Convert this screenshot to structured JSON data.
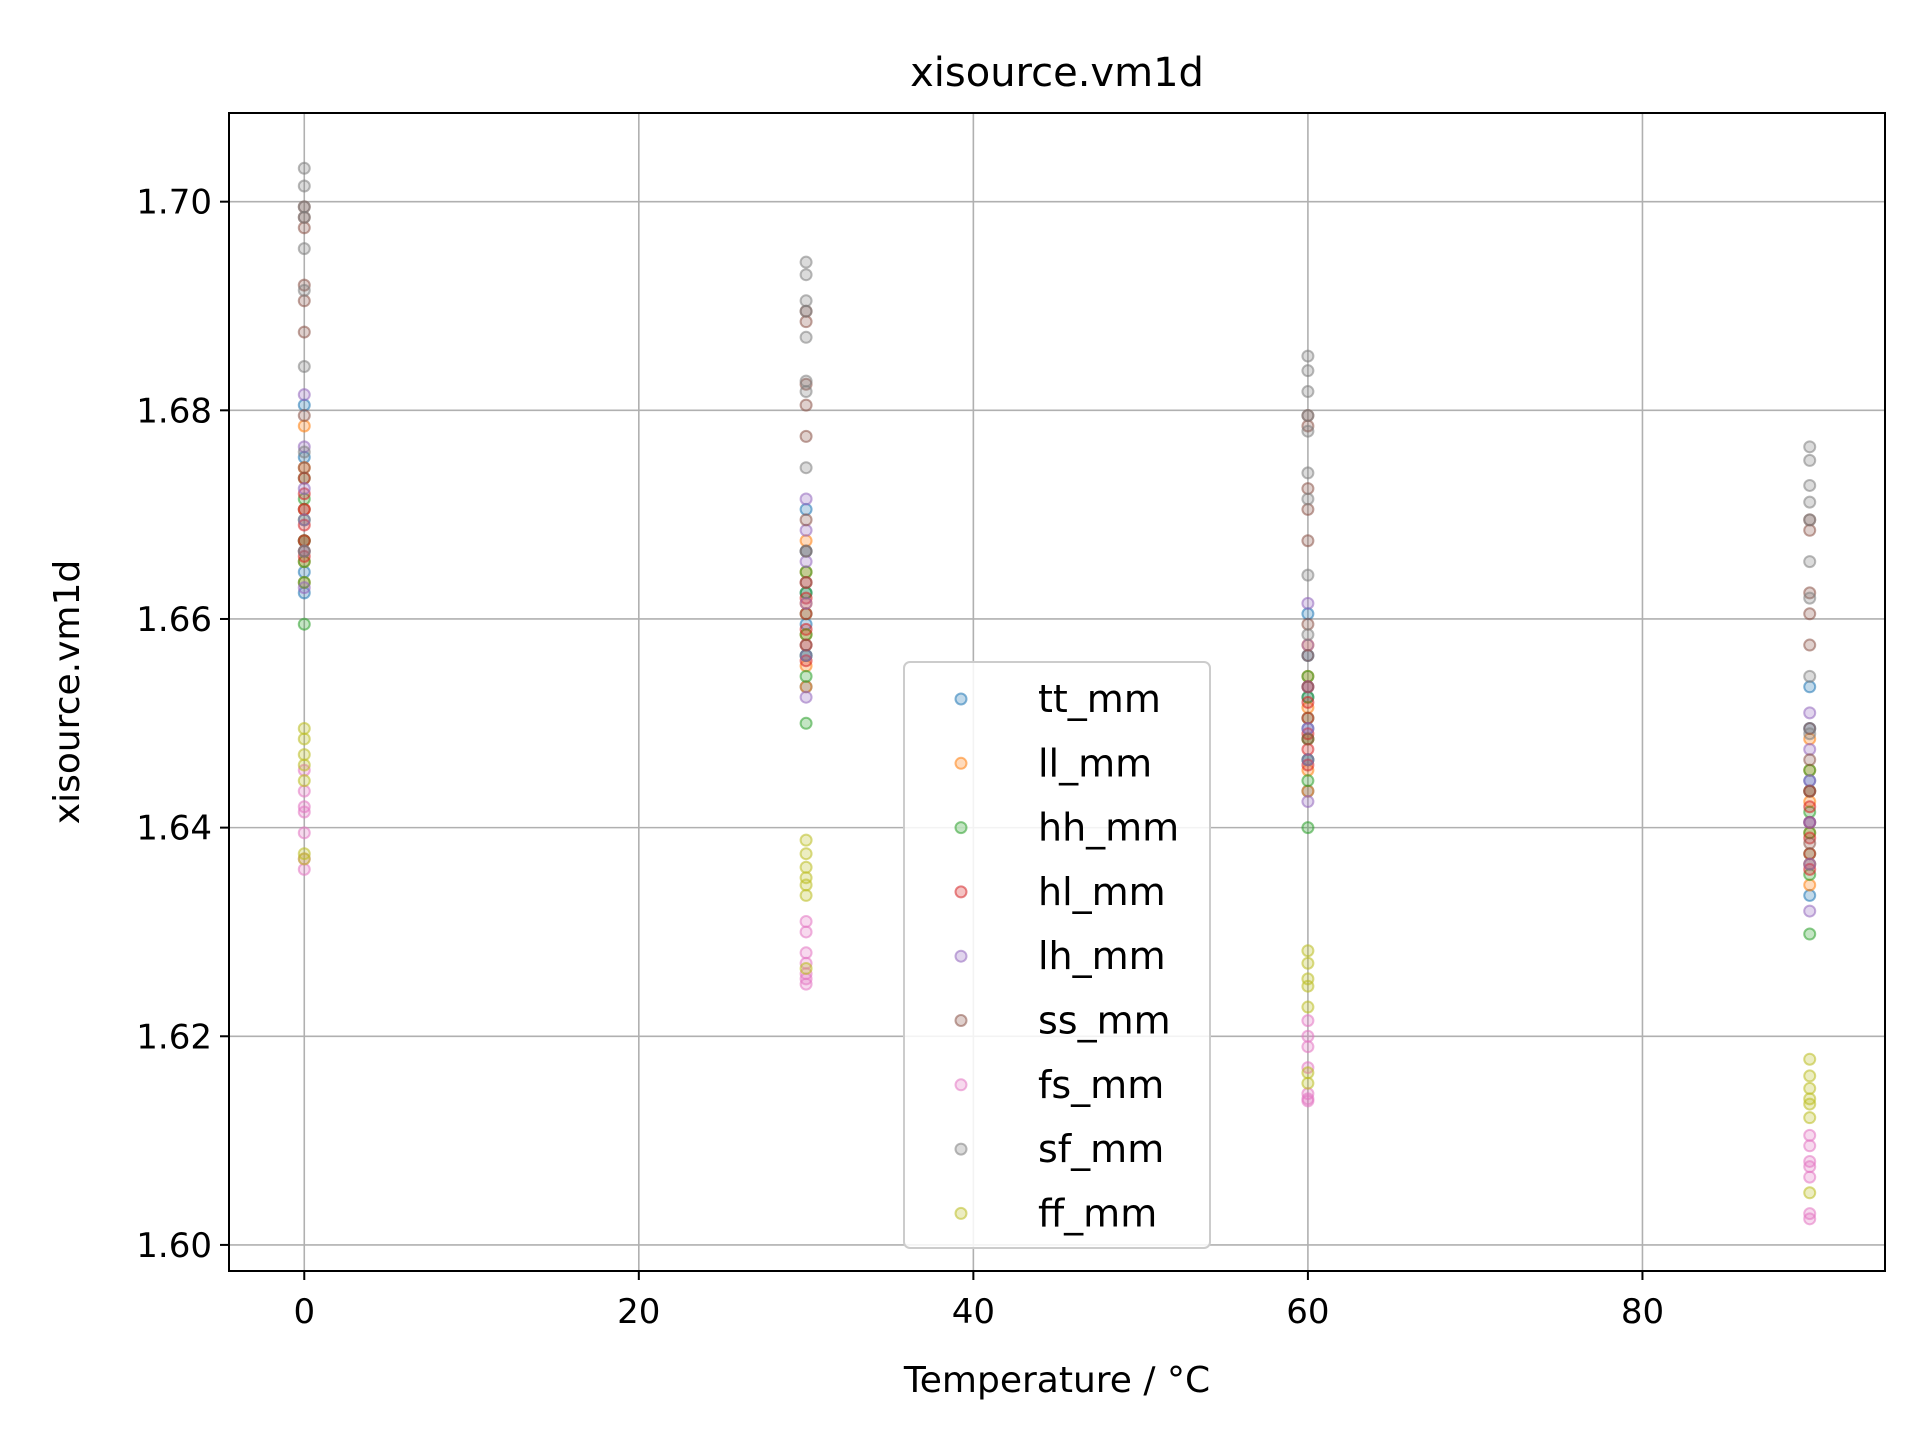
{
  "chart_data": {
    "type": "scatter",
    "title": "xisource.vm1d",
    "xlabel": "Temperature / °C",
    "ylabel": "xisource.vm1d",
    "xlim": [
      -4.5,
      94.5
    ],
    "ylim": [
      1.5975,
      1.7085
    ],
    "xticks": [
      0,
      20,
      40,
      60,
      80
    ],
    "xtick_labels": [
      "0",
      "20",
      "40",
      "60",
      "80"
    ],
    "yticks": [
      1.6,
      1.62,
      1.64,
      1.66,
      1.68,
      1.7
    ],
    "ytick_labels": [
      "1.60",
      "1.62",
      "1.64",
      "1.66",
      "1.68",
      "1.70"
    ],
    "grid": true,
    "legend_position": "bottom-center",
    "series": [
      {
        "name": "tt_mm",
        "color": "#1f77b4",
        "x": [
          0,
          0,
          0,
          0,
          0,
          0,
          30,
          30,
          30,
          30,
          30,
          30,
          60,
          60,
          60,
          60,
          60,
          60,
          90,
          90,
          90,
          90,
          90,
          90
        ],
        "y": [
          1.6805,
          1.6755,
          1.6705,
          1.6675,
          1.6645,
          1.6625,
          1.6705,
          1.6665,
          1.6625,
          1.6595,
          1.6565,
          1.6535,
          1.6605,
          1.6565,
          1.6525,
          1.6495,
          1.6465,
          1.6435,
          1.6535,
          1.6495,
          1.6445,
          1.6405,
          1.6365,
          1.6335
        ]
      },
      {
        "name": "ll_mm",
        "color": "#ff7f0e",
        "x": [
          0,
          0,
          0,
          0,
          0,
          0,
          30,
          30,
          30,
          30,
          30,
          30,
          60,
          60,
          60,
          60,
          60,
          60,
          90,
          90,
          90,
          90,
          90,
          90
        ],
        "y": [
          1.6785,
          1.6745,
          1.6705,
          1.6675,
          1.6655,
          1.6635,
          1.6675,
          1.6645,
          1.6615,
          1.6585,
          1.6555,
          1.6535,
          1.6575,
          1.6545,
          1.6515,
          1.6485,
          1.6455,
          1.6435,
          1.6485,
          1.6455,
          1.6425,
          1.6395,
          1.6365,
          1.6345
        ]
      },
      {
        "name": "hh_mm",
        "color": "#2ca02c",
        "x": [
          0,
          0,
          0,
          0,
          0,
          0,
          0,
          30,
          30,
          30,
          30,
          30,
          30,
          30,
          60,
          60,
          60,
          60,
          60,
          60,
          60,
          90,
          90,
          90,
          90,
          90,
          90,
          90
        ],
        "y": [
          1.6735,
          1.6715,
          1.6695,
          1.6675,
          1.6655,
          1.6635,
          1.6595,
          1.6645,
          1.6625,
          1.6605,
          1.6585,
          1.6565,
          1.6545,
          1.65,
          1.6545,
          1.6525,
          1.6505,
          1.6485,
          1.6465,
          1.6445,
          1.64,
          1.6455,
          1.6435,
          1.6415,
          1.6395,
          1.6375,
          1.6355,
          1.6298
        ]
      },
      {
        "name": "hl_mm",
        "color": "#d62728",
        "x": [
          0,
          0,
          0,
          0,
          0,
          0,
          30,
          30,
          30,
          30,
          30,
          30,
          60,
          60,
          60,
          60,
          60,
          60,
          90,
          90,
          90,
          90,
          90,
          90
        ],
        "y": [
          1.6735,
          1.672,
          1.6705,
          1.669,
          1.6675,
          1.666,
          1.6635,
          1.662,
          1.6605,
          1.659,
          1.6575,
          1.656,
          1.6535,
          1.652,
          1.6505,
          1.649,
          1.6475,
          1.646,
          1.6435,
          1.642,
          1.6405,
          1.639,
          1.6375,
          1.636
        ]
      },
      {
        "name": "lh_mm",
        "color": "#9467bd",
        "x": [
          0,
          0,
          0,
          0,
          0,
          0,
          30,
          30,
          30,
          30,
          30,
          30,
          60,
          60,
          60,
          60,
          60,
          60,
          90,
          90,
          90,
          90,
          90,
          90
        ],
        "y": [
          1.6815,
          1.6765,
          1.6725,
          1.6695,
          1.6665,
          1.663,
          1.6715,
          1.6685,
          1.6655,
          1.6615,
          1.6565,
          1.6525,
          1.6615,
          1.6575,
          1.6535,
          1.6495,
          1.6465,
          1.6425,
          1.651,
          1.6475,
          1.6445,
          1.6405,
          1.6365,
          1.632
        ]
      },
      {
        "name": "ss_mm",
        "color": "#8c564b",
        "x": [
          0,
          0,
          0,
          0,
          0,
          0,
          0,
          0,
          0,
          30,
          30,
          30,
          30,
          30,
          30,
          30,
          30,
          30,
          60,
          60,
          60,
          60,
          60,
          60,
          60,
          60,
          60,
          90,
          90,
          90,
          90,
          90,
          90,
          90,
          90,
          90
        ],
        "y": [
          1.6995,
          1.6985,
          1.6975,
          1.692,
          1.6905,
          1.6875,
          1.6795,
          1.6745,
          1.6665,
          1.6895,
          1.6885,
          1.6825,
          1.6805,
          1.6775,
          1.6695,
          1.6665,
          1.6635,
          1.6575,
          1.6795,
          1.6785,
          1.6725,
          1.6705,
          1.6675,
          1.6595,
          1.6565,
          1.6535,
          1.6485,
          1.6695,
          1.6685,
          1.6625,
          1.6605,
          1.6575,
          1.6495,
          1.6465,
          1.6435,
          1.6385
        ]
      },
      {
        "name": "fs_mm",
        "color": "#e377c2",
        "x": [
          0,
          0,
          0,
          0,
          0,
          0,
          0,
          30,
          30,
          30,
          30,
          30,
          30,
          30,
          60,
          60,
          60,
          60,
          60,
          60,
          60,
          90,
          90,
          90,
          90,
          90,
          90,
          90
        ],
        "y": [
          1.6455,
          1.6435,
          1.642,
          1.6415,
          1.6395,
          1.637,
          1.636,
          1.631,
          1.63,
          1.628,
          1.627,
          1.626,
          1.6255,
          1.625,
          1.6215,
          1.62,
          1.619,
          1.617,
          1.6145,
          1.614,
          1.6138,
          1.6105,
          1.6095,
          1.608,
          1.6075,
          1.6065,
          1.603,
          1.6025
        ]
      },
      {
        "name": "sf_mm",
        "color": "#7f7f7f",
        "x": [
          0,
          0,
          0,
          0,
          0,
          0,
          0,
          0,
          0,
          30,
          30,
          30,
          30,
          30,
          30,
          30,
          30,
          30,
          60,
          60,
          60,
          60,
          60,
          60,
          60,
          60,
          60,
          90,
          90,
          90,
          90,
          90,
          90,
          90,
          90,
          90
        ],
        "y": [
          1.7032,
          1.7015,
          1.6995,
          1.6985,
          1.6955,
          1.6915,
          1.6842,
          1.676,
          1.6665,
          1.6942,
          1.693,
          1.6905,
          1.6895,
          1.687,
          1.6828,
          1.6818,
          1.6745,
          1.6665,
          1.6852,
          1.6838,
          1.6818,
          1.6795,
          1.678,
          1.674,
          1.6715,
          1.6642,
          1.6585,
          1.6765,
          1.6752,
          1.6728,
          1.6712,
          1.6695,
          1.6655,
          1.662,
          1.6545,
          1.649
        ]
      },
      {
        "name": "ff_mm",
        "color": "#bcbd22",
        "x": [
          0,
          0,
          0,
          0,
          0,
          0,
          0,
          30,
          30,
          30,
          30,
          30,
          30,
          30,
          60,
          60,
          60,
          60,
          60,
          60,
          60,
          90,
          90,
          90,
          90,
          90,
          90,
          90
        ],
        "y": [
          1.6495,
          1.6485,
          1.647,
          1.646,
          1.6445,
          1.6375,
          1.637,
          1.6388,
          1.6375,
          1.6362,
          1.6352,
          1.6345,
          1.6335,
          1.6265,
          1.6282,
          1.627,
          1.6255,
          1.6248,
          1.6228,
          1.6165,
          1.6155,
          1.6178,
          1.6162,
          1.615,
          1.614,
          1.6135,
          1.6122,
          1.605
        ]
      }
    ]
  }
}
